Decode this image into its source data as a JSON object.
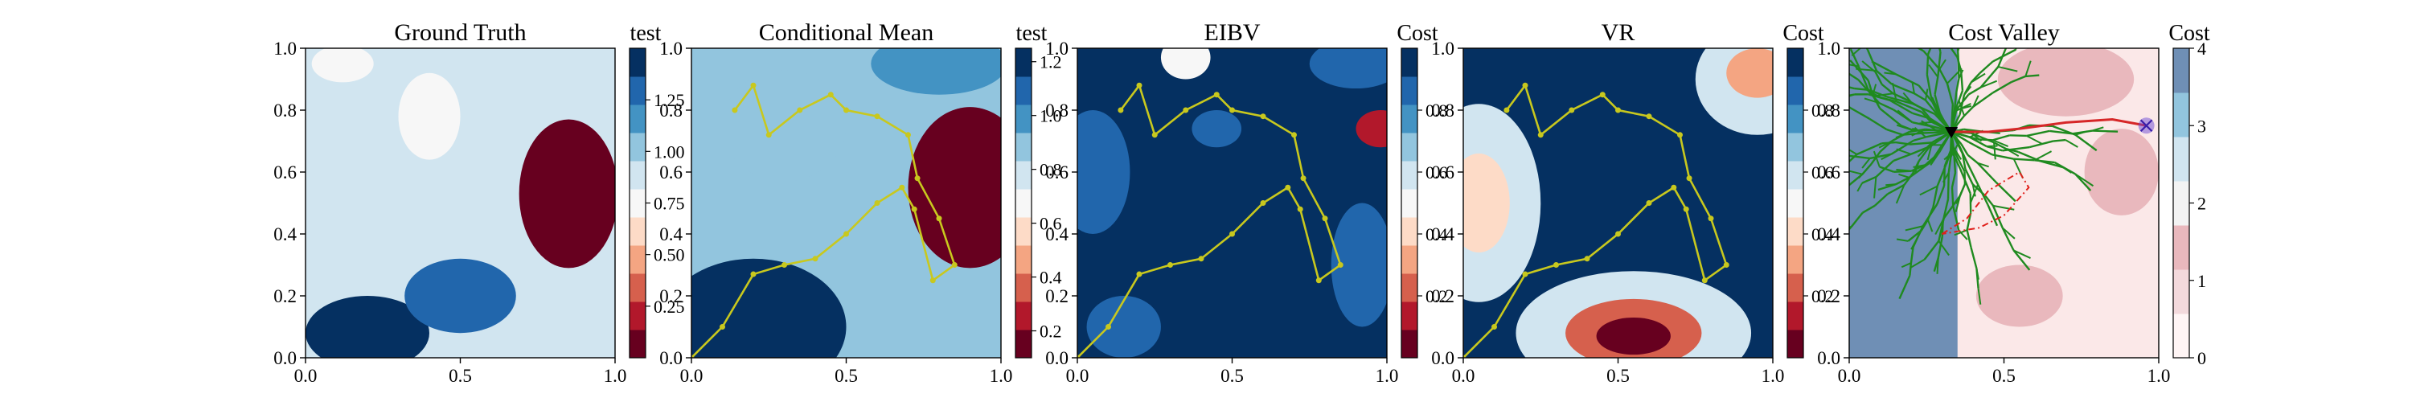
{
  "figure": {
    "panel_count": 5
  },
  "chart_data": [
    {
      "type": "heatmap",
      "title": "Ground Truth",
      "colorbar_label": "test",
      "xlim": [
        0,
        1
      ],
      "ylim": [
        0,
        1
      ],
      "xticks": [
        "0.0",
        "0.5",
        "1.0"
      ],
      "yticks": [
        "0.0",
        "0.2",
        "0.4",
        "0.6",
        "0.8",
        "1.0"
      ],
      "colorbar_range": [
        0.0,
        1.5
      ],
      "colorbar_ticks": [
        "0.25",
        "0.50",
        "0.75",
        "1.00",
        "1.25"
      ],
      "colorbar_tick_values": [
        0.25,
        0.5,
        0.75,
        1.0,
        1.25
      ],
      "colormap": [
        "#67001f",
        "#b2182b",
        "#d6604d",
        "#f4a582",
        "#fddbc7",
        "#f7f7f7",
        "#d1e5f0",
        "#92c5de",
        "#4393c3",
        "#2166ac",
        "#053061"
      ],
      "background": "#d1e5f0",
      "features": [
        {
          "kind": "blob",
          "x": 0.85,
          "y": 0.53,
          "rx": 0.16,
          "ry": 0.24,
          "value": 0.1
        },
        {
          "kind": "blob",
          "x": 0.4,
          "y": 0.78,
          "rx": 0.1,
          "ry": 0.14,
          "value": 0.75
        },
        {
          "kind": "blob",
          "x": 0.2,
          "y": 0.08,
          "rx": 0.2,
          "ry": 0.12,
          "value": 1.45
        },
        {
          "kind": "blob",
          "x": 0.5,
          "y": 0.2,
          "rx": 0.18,
          "ry": 0.12,
          "value": 1.35
        },
        {
          "kind": "blob",
          "x": 0.12,
          "y": 0.95,
          "rx": 0.1,
          "ry": 0.06,
          "value": 0.75
        }
      ]
    },
    {
      "type": "heatmap",
      "title": "Conditional Mean",
      "colorbar_label": "test",
      "xlim": [
        0,
        1
      ],
      "ylim": [
        0,
        1
      ],
      "xticks": [
        "0.0",
        "0.5",
        "1.0"
      ],
      "yticks": [
        "0.0",
        "0.2",
        "0.4",
        "0.6",
        "0.8",
        "1.0"
      ],
      "colorbar_range": [
        0.1,
        1.25
      ],
      "colorbar_ticks": [
        "0.2",
        "0.4",
        "0.6",
        "0.8",
        "1.0",
        "1.2"
      ],
      "colorbar_tick_values": [
        0.2,
        0.4,
        0.6,
        0.8,
        1.0,
        1.2
      ],
      "colormap": [
        "#67001f",
        "#b2182b",
        "#d6604d",
        "#f4a582",
        "#fddbc7",
        "#f7f7f7",
        "#d1e5f0",
        "#92c5de",
        "#4393c3",
        "#2166ac",
        "#053061"
      ],
      "background": "#92c5de",
      "features": [
        {
          "kind": "blob",
          "x": 0.9,
          "y": 0.55,
          "rx": 0.2,
          "ry": 0.26,
          "value": 0.15
        },
        {
          "kind": "blob",
          "x": 0.3,
          "y": 0.75,
          "rx": 0.2,
          "ry": 0.18,
          "value": 0.85
        },
        {
          "kind": "blob",
          "x": 0.2,
          "y": 0.1,
          "rx": 0.3,
          "ry": 0.22,
          "value": 1.22
        },
        {
          "kind": "blob",
          "x": 0.8,
          "y": 0.95,
          "rx": 0.22,
          "ry": 0.1,
          "value": 1.0
        }
      ],
      "path": [
        [
          0.0,
          0.0
        ],
        [
          0.1,
          0.1
        ],
        [
          0.2,
          0.27
        ],
        [
          0.3,
          0.3
        ],
        [
          0.4,
          0.32
        ],
        [
          0.5,
          0.4
        ],
        [
          0.6,
          0.5
        ],
        [
          0.68,
          0.55
        ],
        [
          0.72,
          0.48
        ],
        [
          0.78,
          0.25
        ],
        [
          0.85,
          0.3
        ],
        [
          0.8,
          0.45
        ],
        [
          0.73,
          0.58
        ],
        [
          0.7,
          0.72
        ],
        [
          0.6,
          0.78
        ],
        [
          0.5,
          0.8
        ],
        [
          0.45,
          0.85
        ],
        [
          0.35,
          0.8
        ],
        [
          0.25,
          0.72
        ],
        [
          0.2,
          0.88
        ],
        [
          0.14,
          0.8
        ]
      ]
    },
    {
      "type": "heatmap",
      "title": "EIBV",
      "colorbar_label": "Cost",
      "xlim": [
        0,
        1
      ],
      "ylim": [
        0,
        1
      ],
      "xticks": [
        "0.0",
        "0.5",
        "1.0"
      ],
      "yticks": [
        "0.0",
        "0.2",
        "0.4",
        "0.6",
        "0.8",
        "1.0"
      ],
      "colorbar_range": [
        0.0,
        1.0
      ],
      "colorbar_ticks": [
        "0.2",
        "0.4",
        "0.6",
        "0.8"
      ],
      "colorbar_tick_values": [
        0.2,
        0.4,
        0.6,
        0.8
      ],
      "colormap": [
        "#67001f",
        "#b2182b",
        "#d6604d",
        "#f4a582",
        "#fddbc7",
        "#f7f7f7",
        "#d1e5f0",
        "#92c5de",
        "#4393c3",
        "#2166ac",
        "#053061"
      ],
      "background": "#053061",
      "features": [
        {
          "kind": "blob",
          "x": 0.05,
          "y": 0.6,
          "rx": 0.12,
          "ry": 0.2,
          "value": 0.82
        },
        {
          "kind": "blob",
          "x": 0.15,
          "y": 0.1,
          "rx": 0.12,
          "ry": 0.1,
          "value": 0.82
        },
        {
          "kind": "blob",
          "x": 0.45,
          "y": 0.74,
          "rx": 0.08,
          "ry": 0.06,
          "value": 0.82
        },
        {
          "kind": "blob",
          "x": 0.9,
          "y": 0.95,
          "rx": 0.15,
          "ry": 0.08,
          "value": 0.82
        },
        {
          "kind": "blob",
          "x": 0.92,
          "y": 0.3,
          "rx": 0.1,
          "ry": 0.2,
          "value": 0.82
        },
        {
          "kind": "blob",
          "x": 0.35,
          "y": 0.97,
          "rx": 0.08,
          "ry": 0.07,
          "value": 0.5
        },
        {
          "kind": "blob",
          "x": 0.98,
          "y": 0.74,
          "rx": 0.08,
          "ry": 0.06,
          "value": 0.15
        }
      ],
      "path": [
        [
          0.0,
          0.0
        ],
        [
          0.1,
          0.1
        ],
        [
          0.2,
          0.27
        ],
        [
          0.3,
          0.3
        ],
        [
          0.4,
          0.32
        ],
        [
          0.5,
          0.4
        ],
        [
          0.6,
          0.5
        ],
        [
          0.68,
          0.55
        ],
        [
          0.72,
          0.48
        ],
        [
          0.78,
          0.25
        ],
        [
          0.85,
          0.3
        ],
        [
          0.8,
          0.45
        ],
        [
          0.73,
          0.58
        ],
        [
          0.7,
          0.72
        ],
        [
          0.6,
          0.78
        ],
        [
          0.5,
          0.8
        ],
        [
          0.45,
          0.85
        ],
        [
          0.35,
          0.8
        ],
        [
          0.25,
          0.72
        ],
        [
          0.2,
          0.88
        ],
        [
          0.14,
          0.8
        ]
      ]
    },
    {
      "type": "heatmap",
      "title": "VR",
      "colorbar_label": "Cost",
      "xlim": [
        0,
        1
      ],
      "ylim": [
        0,
        1
      ],
      "xticks": [
        "0.0",
        "0.5",
        "1.0"
      ],
      "yticks": [
        "0.0",
        "0.2",
        "0.4",
        "0.6",
        "0.8",
        "1.0"
      ],
      "colorbar_range": [
        0.0,
        1.0
      ],
      "colorbar_ticks": [
        "0.2",
        "0.4",
        "0.6",
        "0.8"
      ],
      "colorbar_tick_values": [
        0.2,
        0.4,
        0.6,
        0.8
      ],
      "colormap": [
        "#67001f",
        "#b2182b",
        "#d6604d",
        "#f4a582",
        "#fddbc7",
        "#f7f7f7",
        "#d1e5f0",
        "#92c5de",
        "#4393c3",
        "#2166ac",
        "#053061"
      ],
      "background": "#053061",
      "features": [
        {
          "kind": "blob",
          "x": 0.05,
          "y": 0.5,
          "rx": 0.2,
          "ry": 0.32,
          "value": 0.6
        },
        {
          "kind": "blob",
          "x": 0.95,
          "y": 0.9,
          "rx": 0.2,
          "ry": 0.18,
          "value": 0.6
        },
        {
          "kind": "blob",
          "x": 0.55,
          "y": 0.08,
          "rx": 0.38,
          "ry": 0.2,
          "value": 0.6
        },
        {
          "kind": "blob",
          "x": 0.05,
          "y": 0.5,
          "rx": 0.1,
          "ry": 0.16,
          "value": 0.4
        },
        {
          "kind": "blob",
          "x": 0.95,
          "y": 0.92,
          "rx": 0.1,
          "ry": 0.08,
          "value": 0.35
        },
        {
          "kind": "blob",
          "x": 0.55,
          "y": 0.08,
          "rx": 0.22,
          "ry": 0.11,
          "value": 0.25
        },
        {
          "kind": "blob",
          "x": 0.55,
          "y": 0.07,
          "rx": 0.12,
          "ry": 0.06,
          "value": 0.05
        }
      ],
      "path": [
        [
          0.0,
          0.0
        ],
        [
          0.1,
          0.1
        ],
        [
          0.2,
          0.27
        ],
        [
          0.3,
          0.3
        ],
        [
          0.4,
          0.32
        ],
        [
          0.5,
          0.4
        ],
        [
          0.6,
          0.5
        ],
        [
          0.68,
          0.55
        ],
        [
          0.72,
          0.48
        ],
        [
          0.78,
          0.25
        ],
        [
          0.85,
          0.3
        ],
        [
          0.8,
          0.45
        ],
        [
          0.73,
          0.58
        ],
        [
          0.7,
          0.72
        ],
        [
          0.6,
          0.78
        ],
        [
          0.5,
          0.8
        ],
        [
          0.45,
          0.85
        ],
        [
          0.35,
          0.8
        ],
        [
          0.25,
          0.72
        ],
        [
          0.2,
          0.88
        ],
        [
          0.14,
          0.8
        ]
      ]
    },
    {
      "type": "heatmap",
      "title": "Cost Valley",
      "colorbar_label": "Cost",
      "xlim": [
        0,
        1
      ],
      "ylim": [
        0,
        1
      ],
      "xticks": [
        "0.0",
        "0.5",
        "1.0"
      ],
      "yticks": [
        "0.0",
        "0.2",
        "0.4",
        "0.6",
        "0.8",
        "1.0"
      ],
      "colorbar_range": [
        0,
        4
      ],
      "colorbar_ticks": [
        "0",
        "1",
        "2",
        "3",
        "4"
      ],
      "colorbar_tick_values": [
        0,
        1,
        2,
        3,
        4
      ],
      "colormap": [
        "#fff5f5",
        "#f3d9dc",
        "#e9b8bd",
        "#f3f3f3",
        "#d1e5f0",
        "#92c5de",
        "#6f8fb5"
      ],
      "background": "#fbe8e8",
      "features": [
        {
          "kind": "rect",
          "x0": 0.0,
          "y0": 0.0,
          "x1": 0.35,
          "y1": 1.0,
          "value": 3.8
        },
        {
          "kind": "blob",
          "x": 0.7,
          "y": 0.9,
          "rx": 0.22,
          "ry": 0.12,
          "value": 1.5
        },
        {
          "kind": "blob",
          "x": 0.88,
          "y": 0.6,
          "rx": 0.12,
          "ry": 0.14,
          "value": 1.4
        },
        {
          "kind": "blob",
          "x": 0.55,
          "y": 0.2,
          "rx": 0.14,
          "ry": 0.1,
          "value": 1.3
        }
      ],
      "start": [
        0.33,
        0.73
      ],
      "goal": [
        0.96,
        0.75
      ],
      "planned_path": [
        [
          0.33,
          0.73
        ],
        [
          0.45,
          0.73
        ],
        [
          0.55,
          0.74
        ],
        [
          0.7,
          0.76
        ],
        [
          0.85,
          0.77
        ],
        [
          0.96,
          0.75
        ]
      ],
      "obstacle": [
        [
          0.3,
          0.4
        ],
        [
          0.38,
          0.45
        ],
        [
          0.45,
          0.54
        ],
        [
          0.55,
          0.6
        ],
        [
          0.58,
          0.55
        ],
        [
          0.5,
          0.46
        ],
        [
          0.42,
          0.42
        ]
      ],
      "tree_seed": 7
    }
  ]
}
